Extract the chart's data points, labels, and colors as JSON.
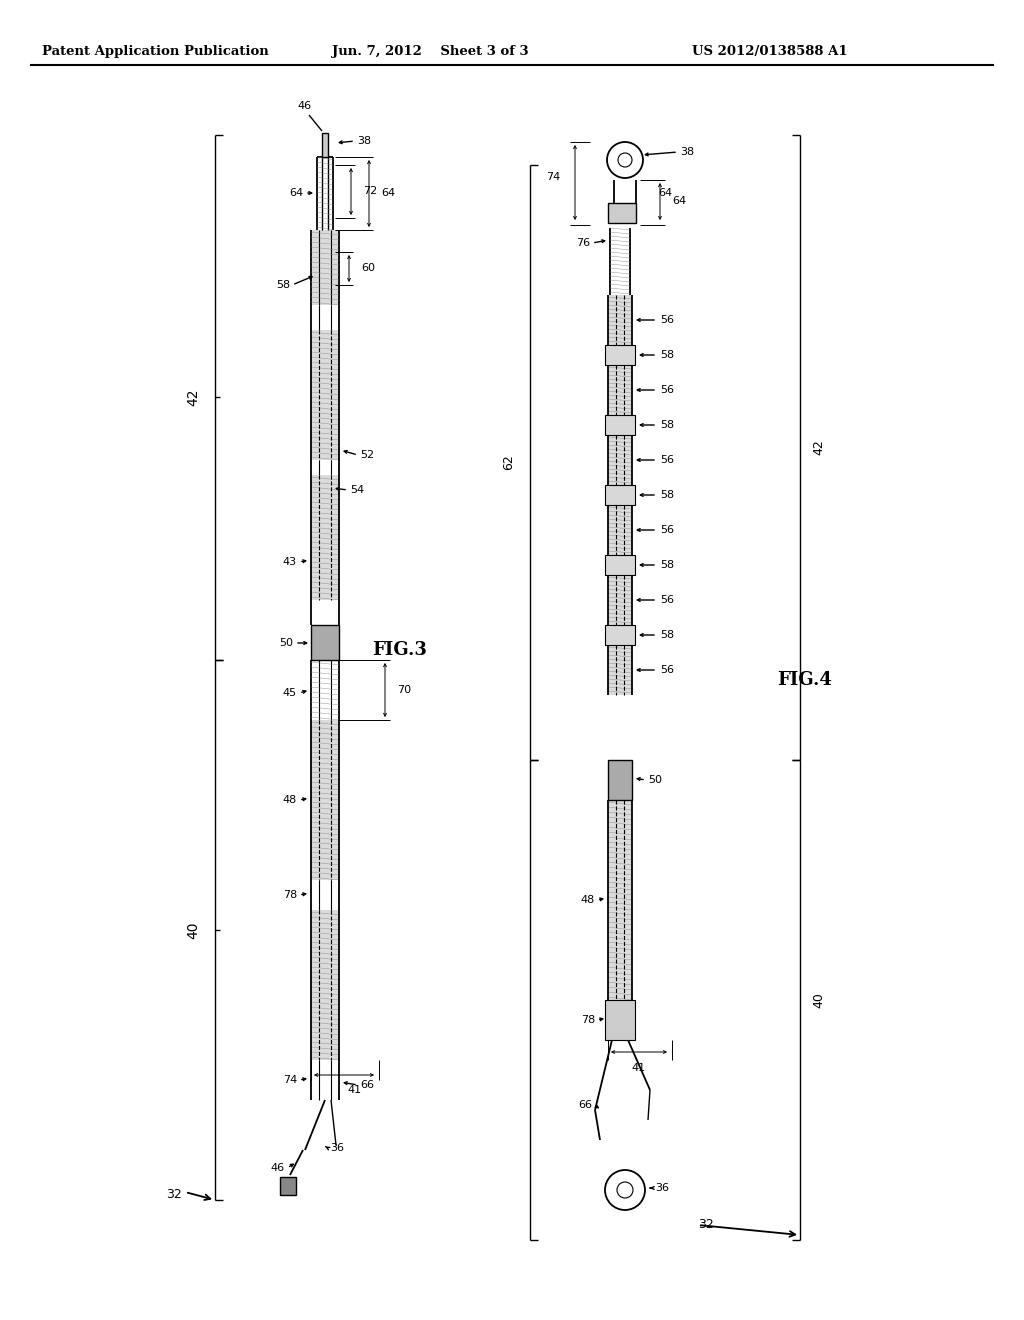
{
  "bg_color": "#ffffff",
  "header_left": "Patent Application Publication",
  "header_center": "Jun. 7, 2012    Sheet 3 of 3",
  "header_right": "US 2012/0138588 A1",
  "fig3_label": "FIG.3",
  "fig4_label": "FIG.4"
}
